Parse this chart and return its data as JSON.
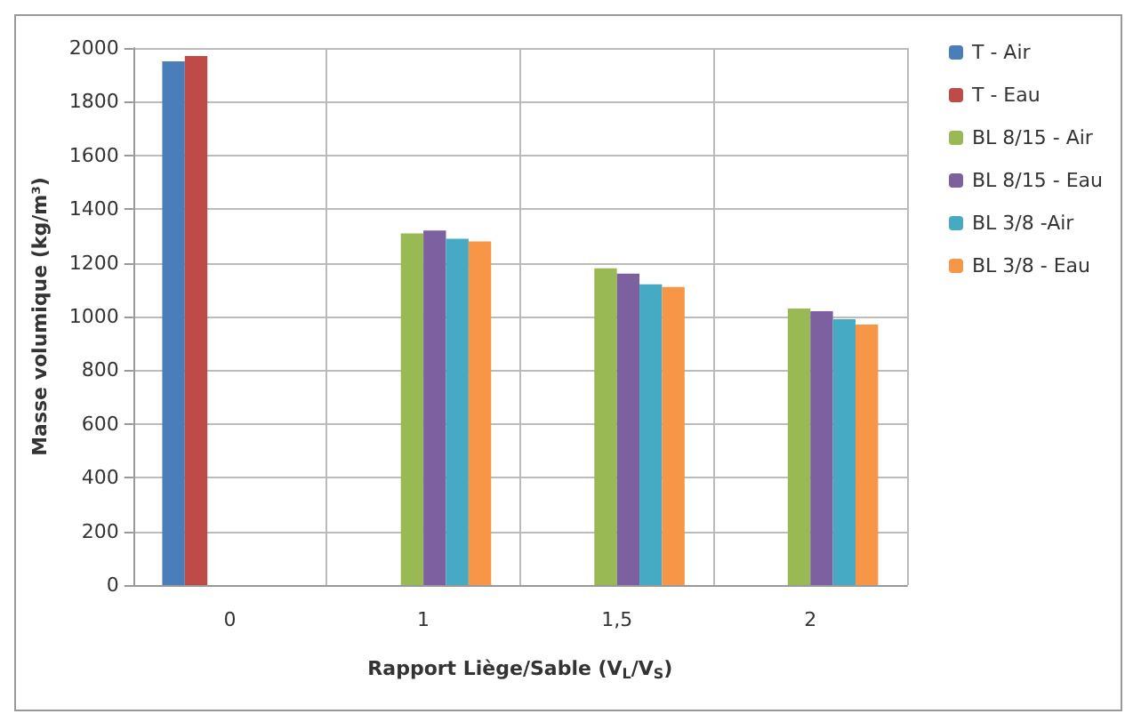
{
  "chart_data": {
    "type": "bar",
    "xlabel": "Rapport Liège/Sable (V$_{L}$/V$_{S}$)",
    "ylabel": "Masse volumique (kg/m³)",
    "categories": [
      "0",
      "1",
      "1,5",
      "2"
    ],
    "series": [
      {
        "name": "T - Air",
        "color": "#4a7ebb",
        "values": [
          1950,
          null,
          null,
          null
        ]
      },
      {
        "name": "T - Eau",
        "color": "#be4b48",
        "values": [
          1970,
          null,
          null,
          null
        ]
      },
      {
        "name": "BL 8/15 - Air",
        "color": "#98b954",
        "values": [
          null,
          1310,
          1180,
          1030
        ]
      },
      {
        "name": "BL 8/15 - Eau",
        "color": "#7d60a0",
        "values": [
          null,
          1320,
          1160,
          1020
        ]
      },
      {
        "name": "BL 3/8 -Air",
        "color": "#46aac5",
        "values": [
          null,
          1290,
          1120,
          990
        ]
      },
      {
        "name": "BL 3/8 - Eau",
        "color": "#f79646",
        "values": [
          null,
          1280,
          1110,
          970
        ]
      }
    ],
    "ylim": [
      0,
      2000
    ],
    "yticks": [
      0,
      200,
      400,
      600,
      800,
      1000,
      1200,
      1400,
      1600,
      1800,
      2000
    ],
    "grid": true,
    "legend": "right"
  }
}
